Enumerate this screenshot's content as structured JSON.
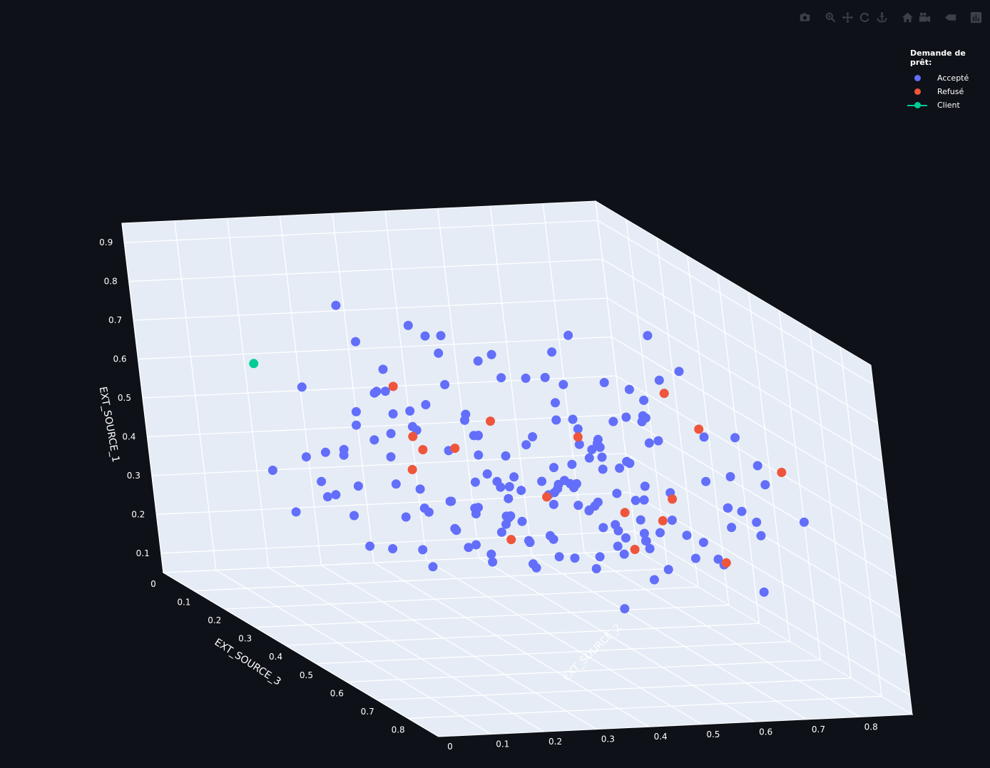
{
  "modebar": {
    "buttons": [
      {
        "name": "camera-icon",
        "group": 0
      },
      {
        "name": "zoom-icon",
        "group": 1
      },
      {
        "name": "pan-icon",
        "group": 1
      },
      {
        "name": "orbit-rotation-icon",
        "group": 1
      },
      {
        "name": "turntable-rotation-icon",
        "group": 1
      },
      {
        "name": "home-icon",
        "group": 2
      },
      {
        "name": "camera-view-icon",
        "group": 2
      },
      {
        "name": "hover-toggle-icon",
        "group": 3
      },
      {
        "name": "plotly-logo-icon",
        "group": 4
      }
    ]
  },
  "legend": {
    "title": "Demande de prêt:",
    "items": [
      {
        "label": "Accepté",
        "color": "#636efa",
        "kind": "marker"
      },
      {
        "label": "Refusé",
        "color": "#ef553b",
        "kind": "marker"
      },
      {
        "label": "Client",
        "color": "#00cc96",
        "kind": "line-marker"
      }
    ]
  },
  "chart_data": {
    "type": "scatter3d",
    "axes": {
      "x": {
        "label": "EXT_SOURCE_3",
        "range": [
          0,
          0.9
        ],
        "ticks": [
          0,
          0.1,
          0.2,
          0.3,
          0.4,
          0.5,
          0.6,
          0.7,
          0.8
        ]
      },
      "y": {
        "label": "EXT_SOURCE_2",
        "range": [
          0,
          0.9
        ],
        "ticks": [
          0,
          0.1,
          0.2,
          0.3,
          0.4,
          0.5,
          0.6,
          0.7,
          0.8
        ]
      },
      "z": {
        "label": "EXT_SOURCE_1",
        "range": [
          0.05,
          0.95
        ],
        "ticks": [
          0.1,
          0.2,
          0.3,
          0.4,
          0.5,
          0.6,
          0.7,
          0.8,
          0.9
        ]
      }
    },
    "background": {
      "scene": "#e5ecf6",
      "grid": "#ffffff"
    },
    "series": [
      {
        "name": "Accepté",
        "color": "#636efa",
        "points": [
          [
            0.11,
            0.38,
            0.54
          ],
          [
            0.18,
            0.51,
            0.51
          ],
          [
            0.07,
            0.51,
            0.66
          ],
          [
            0.16,
            0.21,
            0.41
          ],
          [
            0.26,
            0.33,
            0.56
          ],
          [
            0.29,
            0.72,
            0.63
          ],
          [
            0.42,
            0.82,
            0.43
          ],
          [
            0.71,
            0.38,
            0.63
          ],
          [
            0.69,
            0.14,
            0.38
          ],
          [
            0.41,
            0.76,
            0.69
          ],
          [
            0.36,
            0.66,
            0.5
          ],
          [
            0.51,
            0.41,
            0.51
          ],
          [
            0.64,
            0.23,
            0.82
          ],
          [
            0.71,
            0.68,
            0.36
          ],
          [
            0.44,
            0.33,
            0.55
          ],
          [
            0.07,
            0.29,
            0.26
          ],
          [
            0.54,
            0.17,
            0.76
          ],
          [
            0.36,
            0.25,
            0.67
          ],
          [
            0.29,
            0.23,
            0.86
          ],
          [
            0.11,
            0.26,
            0.32
          ],
          [
            0.71,
            0.46,
            0.47
          ],
          [
            0.13,
            0.54,
            0.31
          ],
          [
            0.62,
            0.34,
            0.62
          ],
          [
            0.36,
            0.59,
            0.75
          ],
          [
            0.45,
            0.51,
            0.27
          ],
          [
            0.23,
            0.48,
            0.52
          ],
          [
            0.39,
            0.81,
            0.7
          ],
          [
            0.73,
            0.66,
            0.7
          ],
          [
            0.49,
            0.11,
            0.42
          ],
          [
            0.4,
            0.2,
            0.82
          ],
          [
            0.28,
            0.25,
            0.58
          ],
          [
            0.72,
            0.72,
            0.5
          ],
          [
            0.53,
            0.64,
            0.32
          ],
          [
            0.51,
            0.33,
            0.42
          ],
          [
            0.23,
            0.38,
            0.51
          ],
          [
            0.61,
            0.81,
            0.38
          ],
          [
            0.35,
            0.33,
            0.83
          ],
          [
            0.4,
            0.65,
            0.32
          ],
          [
            0.46,
            0.51,
            0.44
          ],
          [
            0.17,
            0.85,
            0.48
          ],
          [
            0.58,
            0.74,
            0.31
          ],
          [
            0.5,
            0.51,
            0.69
          ],
          [
            0.57,
            0.09,
            0.38
          ],
          [
            0.59,
            0.83,
            0.55
          ],
          [
            0.33,
            0.4,
            0.79
          ],
          [
            0.55,
            0.33,
            0.64
          ],
          [
            0.48,
            0.3,
            0.44
          ],
          [
            0.31,
            0.61,
            0.55
          ],
          [
            0.48,
            0.13,
            0.49
          ],
          [
            0.62,
            0.76,
            0.54
          ],
          [
            0.44,
            0.42,
            0.45
          ],
          [
            0.73,
            0.83,
            0.47
          ],
          [
            0.43,
            0.43,
            0.37
          ],
          [
            0.44,
            0.56,
            0.5
          ],
          [
            0.5,
            0.64,
            0.43
          ],
          [
            0.82,
            0.67,
            0.74
          ],
          [
            0.66,
            0.27,
            0.37
          ],
          [
            0.53,
            0.57,
            0.56
          ],
          [
            0.43,
            0.42,
            0.46
          ],
          [
            0.4,
            0.66,
            0.4
          ],
          [
            0.35,
            0.62,
            0.57
          ],
          [
            0.56,
            0.83,
            0.21
          ],
          [
            0.64,
            0.57,
            0.45
          ],
          [
            0.4,
            0.58,
            0.42
          ],
          [
            0.3,
            0.3,
            0.53
          ],
          [
            0.25,
            0.5,
            0.39
          ],
          [
            0.09,
            0.38,
            0.41
          ],
          [
            0.67,
            0.56,
            0.41
          ],
          [
            0.24,
            0.54,
            0.69
          ],
          [
            0.29,
            0.82,
            0.34
          ],
          [
            0.22,
            0.7,
            0.72
          ],
          [
            0.15,
            0.43,
            0.46
          ],
          [
            0.31,
            0.78,
            0.59
          ],
          [
            0.56,
            0.78,
            0.43
          ],
          [
            0.44,
            0.71,
            0.61
          ],
          [
            0.77,
            0.45,
            0.29
          ],
          [
            0.58,
            0.77,
            0.44
          ],
          [
            0.56,
            0.4,
            0.31
          ],
          [
            0.5,
            0.56,
            0.29
          ],
          [
            0.42,
            0.51,
            0.45
          ],
          [
            0.65,
            0.52,
            0.43
          ],
          [
            0.68,
            0.13,
            0.42
          ],
          [
            0.09,
            0.68,
            0.55
          ],
          [
            0.55,
            0.45,
            0.48
          ],
          [
            0.63,
            0.31,
            0.43
          ],
          [
            0.19,
            0.4,
            0.53
          ],
          [
            0.4,
            0.75,
            0.53
          ],
          [
            0.55,
            0.59,
            0.54
          ],
          [
            0.52,
            0.41,
            0.4
          ],
          [
            0.64,
            0.28,
            0.38
          ],
          [
            0.32,
            0.51,
            0.67
          ],
          [
            0.42,
            0.59,
            0.58
          ],
          [
            0.26,
            0.09,
            0.43
          ],
          [
            0.15,
            0.38,
            0.62
          ],
          [
            0.07,
            0.36,
            0.44
          ],
          [
            0.62,
            0.42,
            0.49
          ],
          [
            0.28,
            0.68,
            0.31
          ],
          [
            0.64,
            0.42,
            0.54
          ],
          [
            0.36,
            0.48,
            0.41
          ],
          [
            0.37,
            0.24,
            0.27
          ],
          [
            0.56,
            0.48,
            0.32
          ],
          [
            0.76,
            0.41,
            0.54
          ],
          [
            0.7,
            0.33,
            0.37
          ],
          [
            0.37,
            0.47,
            0.34
          ],
          [
            0.36,
            0.11,
            0.69
          ],
          [
            0.63,
            0.32,
            0.45
          ],
          [
            0.37,
            0.72,
            0.26
          ],
          [
            0.51,
            0.61,
            0.64
          ],
          [
            0.35,
            0.32,
            0.36
          ],
          [
            0.65,
            0.56,
            0.72
          ],
          [
            0.12,
            0.2,
            0.25
          ],
          [
            0.22,
            0.82,
            0.49
          ],
          [
            0.6,
            0.81,
            0.41
          ],
          [
            0.61,
            0.59,
            0.4
          ],
          [
            0.46,
            0.59,
            0.41
          ],
          [
            0.35,
            0.54,
            0.53
          ],
          [
            0.19,
            0.54,
            0.65
          ],
          [
            0.45,
            0.38,
            0.54
          ],
          [
            0.52,
            0.46,
            0.36
          ],
          [
            0.48,
            0.44,
            0.33
          ],
          [
            0.28,
            0.75,
            0.42
          ],
          [
            0.16,
            0.37,
            0.4
          ],
          [
            0.77,
            0.44,
            0.65
          ],
          [
            0.27,
            0.62,
            0.64
          ],
          [
            0.29,
            0.47,
            0.51
          ],
          [
            0.61,
            0.62,
            0.4
          ],
          [
            0.5,
            0.4,
            0.45
          ],
          [
            0.35,
            0.61,
            0.66
          ],
          [
            0.24,
            0.44,
            0.7
          ],
          [
            0.56,
            0.26,
            0.41
          ],
          [
            0.6,
            0.26,
            0.38
          ],
          [
            0.64,
            0.74,
            0.42
          ],
          [
            0.66,
            0.34,
            0.55
          ],
          [
            0.54,
            0.27,
            0.47
          ],
          [
            0.51,
            0.23,
            0.49
          ],
          [
            0.5,
            0.51,
            0.49
          ],
          [
            0.24,
            0.72,
            0.45
          ],
          [
            0.56,
            0.5,
            0.51
          ],
          [
            0.39,
            0.72,
            0.41
          ],
          [
            0.33,
            0.66,
            0.48
          ],
          [
            0.45,
            0.68,
            0.69
          ],
          [
            0.65,
            0.66,
            0.35
          ],
          [
            0.39,
            0.49,
            0.28
          ],
          [
            0.4,
            0.71,
            0.38
          ],
          [
            0.26,
            0.47,
            0.31
          ],
          [
            0.52,
            0.54,
            0.27
          ],
          [
            0.4,
            0.6,
            0.53
          ],
          [
            0.49,
            0.3,
            0.37
          ],
          [
            0.57,
            0.62,
            0.26
          ],
          [
            0.81,
            0.44,
            0.45
          ],
          [
            0.65,
            0.45,
            0.5
          ],
          [
            0.25,
            0.58,
            0.46
          ],
          [
            0.36,
            0.34,
            0.63
          ],
          [
            0.33,
            0.44,
            0.53
          ],
          [
            0.24,
            0.69,
            0.28
          ],
          [
            0.26,
            0.32,
            0.38
          ],
          [
            0.4,
            0.53,
            0.29
          ],
          [
            0.33,
            0.77,
            0.49
          ],
          [
            0.62,
            0.27,
            0.49
          ],
          [
            0.55,
            0.22,
            0.45
          ],
          [
            0.37,
            0.17,
            0.53
          ],
          [
            0.24,
            0.66,
            0.35
          ],
          [
            0.53,
            0.58,
            0.33
          ],
          [
            0.61,
            0.7,
            0.37
          ],
          [
            0.59,
            0.84,
            0.5
          ],
          [
            0.29,
            0.75,
            0.42
          ],
          [
            0.45,
            0.64,
            0.31
          ],
          [
            0.33,
            0.42,
            0.25
          ],
          [
            0.49,
            0.71,
            0.37
          ],
          [
            0.36,
            0.14,
            0.52
          ],
          [
            0.36,
            0.15,
            0.41
          ],
          [
            0.22,
            0.85,
            0.71
          ],
          [
            0.69,
            0.46,
            0.64
          ],
          [
            0.44,
            0.53,
            0.45
          ],
          [
            0.3,
            0.69,
            0.49
          ],
          [
            0.68,
            0.59,
            0.34
          ],
          [
            0.2,
            0.26,
            0.43
          ],
          [
            0.61,
            0.67,
            0.39
          ],
          [
            0.4,
            0.45,
            0.35
          ],
          [
            0.43,
            0.24,
            0.38
          ]
        ]
      },
      {
        "name": "Refusé",
        "color": "#ef553b",
        "points": [
          [
            0.16,
            0.39,
            0.58
          ],
          [
            0.7,
            0.69,
            0.36
          ],
          [
            0.51,
            0.77,
            0.61
          ],
          [
            0.57,
            0.59,
            0.34
          ],
          [
            0.37,
            0.38,
            0.52
          ],
          [
            0.58,
            0.43,
            0.49
          ],
          [
            0.23,
            0.37,
            0.4
          ],
          [
            0.64,
            0.47,
            0.67
          ],
          [
            0.76,
            0.57,
            0.56
          ],
          [
            0.42,
            0.66,
            0.36
          ],
          [
            0.32,
            0.48,
            0.56
          ],
          [
            0.69,
            0.82,
            0.58
          ],
          [
            0.35,
            0.33,
            0.51
          ],
          [
            0.32,
            0.33,
            0.53
          ],
          [
            0.18,
            0.89,
            0.54
          ],
          [
            0.53,
            0.38,
            0.36
          ],
          [
            0.55,
            0.66,
            0.4
          ]
        ]
      },
      {
        "name": "Client",
        "color": "#00cc96",
        "points": [
          [
            0.07,
            0.18,
            0.61
          ]
        ]
      }
    ]
  }
}
